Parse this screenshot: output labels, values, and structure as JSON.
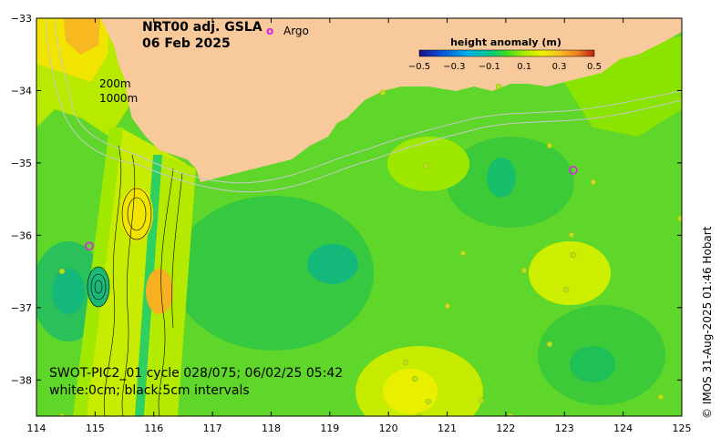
{
  "map": {
    "title_line1": "NRT00 adj. GSLA",
    "title_line2": "06 Feb 2025",
    "argo_marker": "o",
    "argo_label": "Argo",
    "isobath_200": "200m",
    "isobath_1000": "1000m",
    "caption_line1": "SWOT-PIC2_01 cycle 028/075; 06/02/25 05:42",
    "caption_line2": "white:0cm; black:5cm intervals",
    "credit": "© IMOS 31-Aug-2025 01:46 Hobart",
    "x_ticks": [
      "114",
      "115",
      "116",
      "117",
      "118",
      "119",
      "120",
      "121",
      "122",
      "123",
      "124",
      "125"
    ],
    "y_ticks": [
      "−33",
      "−34",
      "−35",
      "−36",
      "−37",
      "−38"
    ],
    "colorbar": {
      "title": "height anomaly (m)",
      "ticks": [
        "−0.5",
        "−0.3",
        "−0.1",
        "0.1",
        "0.3",
        "0.5"
      ],
      "colors": [
        "#1a0f80",
        "#0a4fd6",
        "#00b0e8",
        "#00c88c",
        "#40dc20",
        "#a8ec00",
        "#f0f000",
        "#f8c020",
        "#f08020",
        "#c02010"
      ]
    },
    "colors": {
      "land": "#f8c99a",
      "water_base": "#5fd62a",
      "argo": "#e020e0"
    },
    "argo_floats": [
      {
        "lon": 114.9,
        "lat": -36.15
      },
      {
        "lon": 123.15,
        "lat": -35.1
      }
    ]
  }
}
